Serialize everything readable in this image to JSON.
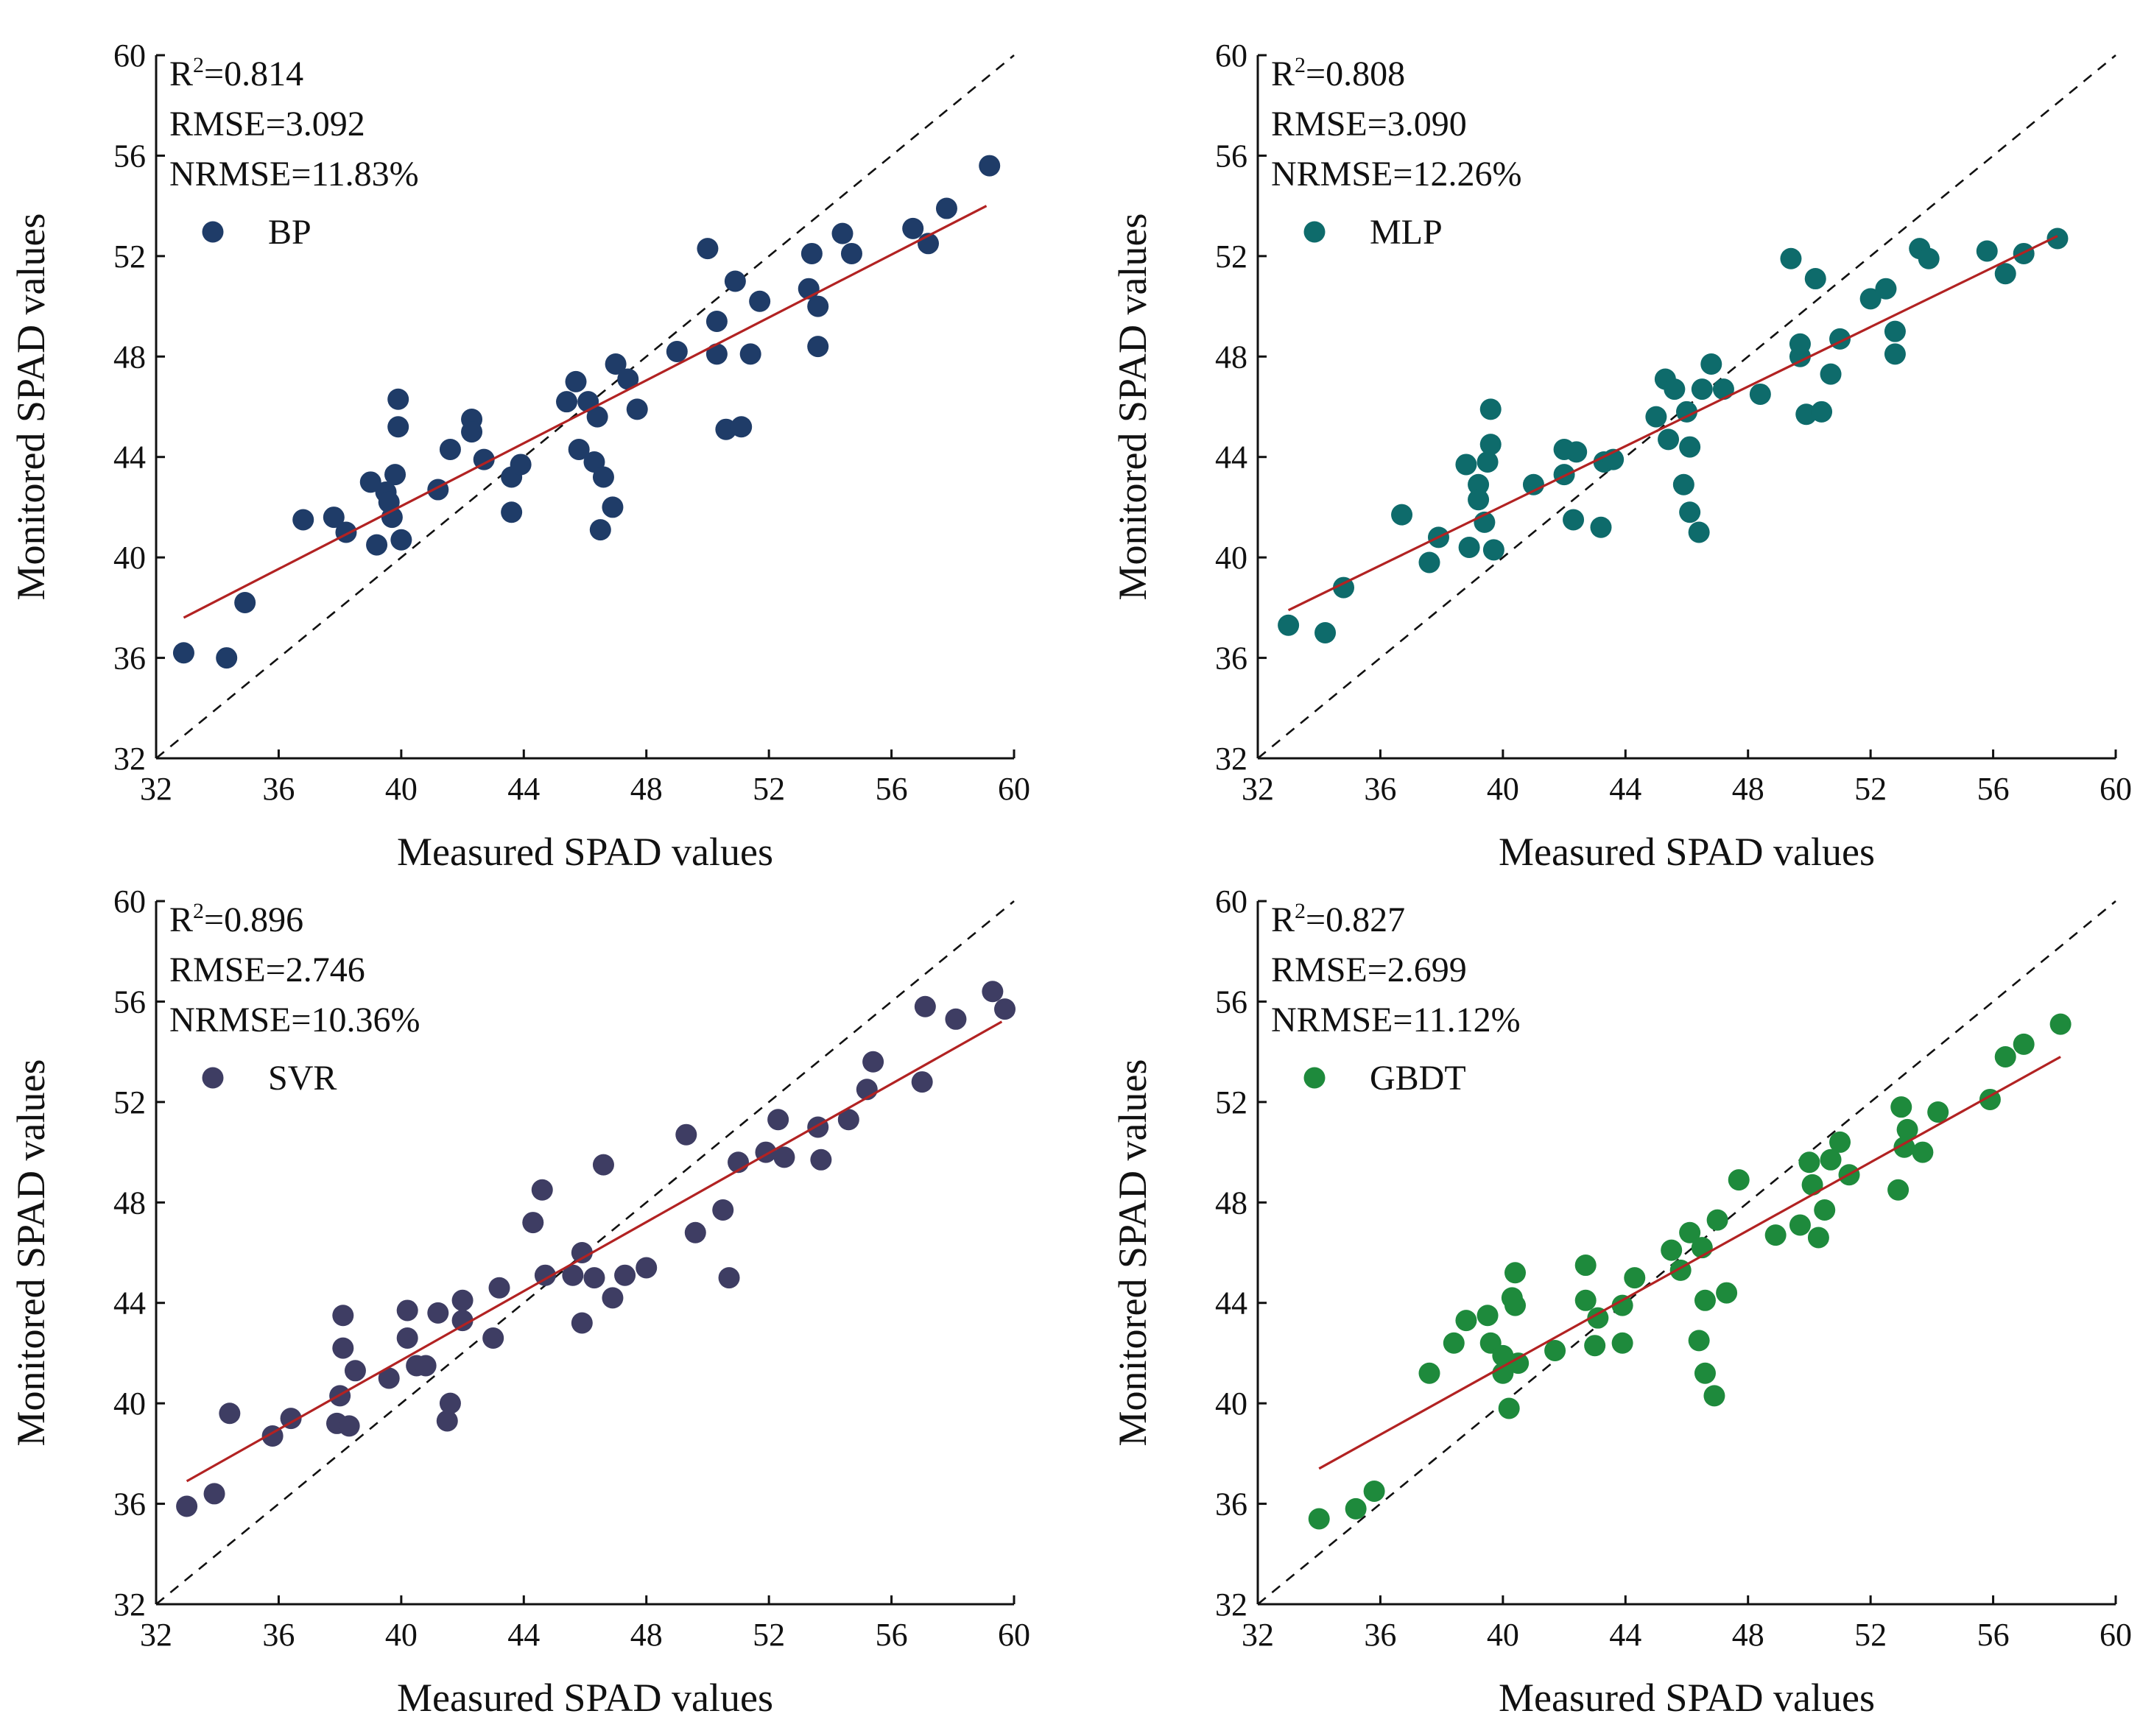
{
  "figure": {
    "xlabel": "Measured SPAD values",
    "ylabel": "Monitored SPAD values"
  },
  "chart_data": [
    {
      "type": "scatter",
      "model": "BP",
      "stats": {
        "r2_label": "R",
        "r2_sup": "2",
        "r2_value": "=0.814",
        "rmse": "RMSE=3.092",
        "nrmse": "NRMSE=11.83%"
      },
      "color": "#1f3c68",
      "xlim": [
        32,
        60
      ],
      "ylim": [
        32,
        60
      ],
      "xticks": [
        32,
        36,
        40,
        44,
        48,
        52,
        56,
        60
      ],
      "yticks": [
        32,
        36,
        40,
        44,
        48,
        52,
        56,
        60
      ],
      "fit": {
        "x": [
          32.9,
          59.1
        ],
        "y": [
          37.6,
          54.0
        ]
      },
      "points": [
        [
          32.9,
          36.2
        ],
        [
          34.3,
          36.0
        ],
        [
          34.9,
          38.2
        ],
        [
          36.8,
          41.5
        ],
        [
          37.8,
          41.6
        ],
        [
          38.2,
          41.0
        ],
        [
          39.0,
          43.0
        ],
        [
          39.2,
          40.5
        ],
        [
          39.5,
          42.6
        ],
        [
          39.6,
          42.2
        ],
        [
          39.7,
          41.6
        ],
        [
          39.8,
          43.3
        ],
        [
          39.9,
          46.3
        ],
        [
          39.9,
          45.2
        ],
        [
          40.0,
          40.7
        ],
        [
          41.2,
          42.7
        ],
        [
          41.6,
          44.3
        ],
        [
          42.3,
          45.5
        ],
        [
          42.3,
          45.0
        ],
        [
          42.7,
          43.9
        ],
        [
          43.6,
          43.2
        ],
        [
          43.6,
          41.8
        ],
        [
          43.9,
          43.7
        ],
        [
          45.4,
          46.2
        ],
        [
          45.7,
          47.0
        ],
        [
          45.8,
          44.3
        ],
        [
          46.1,
          46.2
        ],
        [
          46.3,
          43.8
        ],
        [
          46.4,
          45.6
        ],
        [
          46.5,
          41.1
        ],
        [
          46.6,
          43.2
        ],
        [
          46.9,
          42.0
        ],
        [
          47.0,
          47.7
        ],
        [
          47.4,
          47.1
        ],
        [
          47.7,
          45.9
        ],
        [
          49.0,
          48.2
        ],
        [
          50.0,
          52.3
        ],
        [
          50.3,
          49.4
        ],
        [
          50.3,
          48.1
        ],
        [
          50.6,
          45.1
        ],
        [
          50.9,
          51.0
        ],
        [
          51.1,
          45.2
        ],
        [
          51.4,
          48.1
        ],
        [
          51.7,
          50.2
        ],
        [
          53.3,
          50.7
        ],
        [
          53.4,
          52.1
        ],
        [
          53.6,
          50.0
        ],
        [
          53.6,
          48.4
        ],
        [
          54.4,
          52.9
        ],
        [
          54.7,
          52.1
        ],
        [
          56.7,
          53.1
        ],
        [
          57.2,
          52.5
        ],
        [
          57.8,
          53.9
        ],
        [
          59.2,
          55.6
        ]
      ]
    },
    {
      "type": "scatter",
      "model": "MLP",
      "stats": {
        "r2_label": "R",
        "r2_sup": "2",
        "r2_value": "=0.808",
        "rmse": "RMSE=3.090",
        "nrmse": "NRMSE=12.26%"
      },
      "color": "#0e6b6b",
      "xlim": [
        32,
        60
      ],
      "ylim": [
        32,
        60
      ],
      "xticks": [
        32,
        36,
        40,
        44,
        48,
        52,
        56,
        60
      ],
      "yticks": [
        32,
        36,
        40,
        44,
        48,
        52,
        56,
        60
      ],
      "fit": {
        "x": [
          33.0,
          58.1
        ],
        "y": [
          37.9,
          52.8
        ]
      },
      "points": [
        [
          33.0,
          37.3
        ],
        [
          34.2,
          37.0
        ],
        [
          34.8,
          38.8
        ],
        [
          36.7,
          41.7
        ],
        [
          37.6,
          39.8
        ],
        [
          37.9,
          40.8
        ],
        [
          38.8,
          43.7
        ],
        [
          38.9,
          40.4
        ],
        [
          39.2,
          42.9
        ],
        [
          39.2,
          42.3
        ],
        [
          39.4,
          41.4
        ],
        [
          39.5,
          43.8
        ],
        [
          39.6,
          45.9
        ],
        [
          39.6,
          44.5
        ],
        [
          39.7,
          40.3
        ],
        [
          41.0,
          42.9
        ],
        [
          42.0,
          44.3
        ],
        [
          42.0,
          43.3
        ],
        [
          42.4,
          44.2
        ],
        [
          42.3,
          41.5
        ],
        [
          43.2,
          41.2
        ],
        [
          43.3,
          43.8
        ],
        [
          43.6,
          43.9
        ],
        [
          45.0,
          45.6
        ],
        [
          45.3,
          47.1
        ],
        [
          45.4,
          44.7
        ],
        [
          45.6,
          46.7
        ],
        [
          45.9,
          42.9
        ],
        [
          46.0,
          45.8
        ],
        [
          46.1,
          44.4
        ],
        [
          46.1,
          41.8
        ],
        [
          46.4,
          41.0
        ],
        [
          46.5,
          46.7
        ],
        [
          46.8,
          47.7
        ],
        [
          47.2,
          46.7
        ],
        [
          48.4,
          46.5
        ],
        [
          49.4,
          51.9
        ],
        [
          49.7,
          48.0
        ],
        [
          49.7,
          48.5
        ],
        [
          49.9,
          45.7
        ],
        [
          50.2,
          51.1
        ],
        [
          50.4,
          45.8
        ],
        [
          50.7,
          47.3
        ],
        [
          51.0,
          48.7
        ],
        [
          52.0,
          50.3
        ],
        [
          52.5,
          50.7
        ],
        [
          52.8,
          49.0
        ],
        [
          52.8,
          48.1
        ],
        [
          53.6,
          52.3
        ],
        [
          53.9,
          51.9
        ],
        [
          55.8,
          52.2
        ],
        [
          56.4,
          51.3
        ],
        [
          57.0,
          52.1
        ],
        [
          58.1,
          52.7
        ]
      ]
    },
    {
      "type": "scatter",
      "model": "SVR",
      "stats": {
        "r2_label": "R",
        "r2_sup": "2",
        "r2_value": "=0.896",
        "rmse": "RMSE=2.746",
        "nrmse": "NRMSE=10.36%"
      },
      "color": "#3e3d63",
      "xlim": [
        32,
        60
      ],
      "ylim": [
        32,
        60
      ],
      "xticks": [
        32,
        36,
        40,
        44,
        48,
        52,
        56,
        60
      ],
      "yticks": [
        32,
        36,
        40,
        44,
        48,
        52,
        56,
        60
      ],
      "fit": {
        "x": [
          33.0,
          59.6
        ],
        "y": [
          36.9,
          55.2
        ]
      },
      "points": [
        [
          33.0,
          35.9
        ],
        [
          33.9,
          36.4
        ],
        [
          34.4,
          39.6
        ],
        [
          35.8,
          38.7
        ],
        [
          36.4,
          39.4
        ],
        [
          37.9,
          39.2
        ],
        [
          38.0,
          40.3
        ],
        [
          38.1,
          43.5
        ],
        [
          38.1,
          42.2
        ],
        [
          38.3,
          39.1
        ],
        [
          38.5,
          41.3
        ],
        [
          39.6,
          41.0
        ],
        [
          40.2,
          43.7
        ],
        [
          40.2,
          42.6
        ],
        [
          40.5,
          41.5
        ],
        [
          40.8,
          41.5
        ],
        [
          41.2,
          43.6
        ],
        [
          41.5,
          39.3
        ],
        [
          41.6,
          40.0
        ],
        [
          42.0,
          43.3
        ],
        [
          42.0,
          44.1
        ],
        [
          43.0,
          42.6
        ],
        [
          43.2,
          44.6
        ],
        [
          44.3,
          47.2
        ],
        [
          44.6,
          48.5
        ],
        [
          44.7,
          45.1
        ],
        [
          45.6,
          45.1
        ],
        [
          45.9,
          46.0
        ],
        [
          45.9,
          43.2
        ],
        [
          46.3,
          45.0
        ],
        [
          46.6,
          49.5
        ],
        [
          46.9,
          44.2
        ],
        [
          47.3,
          45.1
        ],
        [
          48.0,
          45.4
        ],
        [
          49.3,
          50.7
        ],
        [
          49.6,
          46.8
        ],
        [
          50.5,
          47.7
        ],
        [
          50.7,
          45.0
        ],
        [
          51.0,
          49.6
        ],
        [
          51.9,
          50.0
        ],
        [
          52.3,
          51.3
        ],
        [
          52.5,
          49.8
        ],
        [
          53.6,
          51.0
        ],
        [
          53.7,
          49.7
        ],
        [
          54.6,
          51.3
        ],
        [
          55.2,
          52.5
        ],
        [
          55.4,
          53.6
        ],
        [
          57.0,
          52.8
        ],
        [
          57.1,
          55.8
        ],
        [
          58.1,
          55.3
        ],
        [
          59.3,
          56.4
        ],
        [
          59.7,
          55.7
        ]
      ]
    },
    {
      "type": "scatter",
      "model": "GBDT",
      "stats": {
        "r2_label": "R",
        "r2_sup": "2",
        "r2_value": "=0.827",
        "rmse": "RMSE=2.699",
        "nrmse": "NRMSE=11.12%"
      },
      "color": "#1e8a3c",
      "xlim": [
        32,
        60
      ],
      "ylim": [
        32,
        60
      ],
      "xticks": [
        32,
        36,
        40,
        44,
        48,
        52,
        56,
        60
      ],
      "yticks": [
        32,
        36,
        40,
        44,
        48,
        52,
        56,
        60
      ],
      "fit": {
        "x": [
          34.0,
          58.2
        ],
        "y": [
          37.4,
          53.8
        ]
      },
      "points": [
        [
          34.0,
          35.4
        ],
        [
          35.2,
          35.8
        ],
        [
          35.8,
          36.5
        ],
        [
          37.6,
          41.2
        ],
        [
          38.4,
          42.4
        ],
        [
          38.8,
          43.3
        ],
        [
          39.5,
          43.5
        ],
        [
          39.6,
          42.4
        ],
        [
          40.0,
          41.9
        ],
        [
          40.0,
          41.2
        ],
        [
          40.2,
          39.8
        ],
        [
          40.3,
          44.2
        ],
        [
          40.4,
          43.9
        ],
        [
          40.4,
          45.2
        ],
        [
          40.5,
          41.6
        ],
        [
          41.7,
          42.1
        ],
        [
          42.7,
          44.1
        ],
        [
          42.7,
          45.5
        ],
        [
          43.0,
          42.3
        ],
        [
          43.1,
          43.4
        ],
        [
          43.9,
          42.4
        ],
        [
          43.9,
          43.9
        ],
        [
          44.3,
          45.0
        ],
        [
          45.5,
          46.1
        ],
        [
          45.8,
          45.3
        ],
        [
          46.1,
          46.8
        ],
        [
          46.4,
          42.5
        ],
        [
          46.5,
          46.2
        ],
        [
          46.6,
          44.1
        ],
        [
          46.6,
          41.2
        ],
        [
          46.9,
          40.3
        ],
        [
          47.0,
          47.3
        ],
        [
          47.3,
          44.4
        ],
        [
          47.7,
          48.9
        ],
        [
          48.9,
          46.7
        ],
        [
          49.7,
          47.1
        ],
        [
          50.0,
          49.6
        ],
        [
          50.1,
          48.7
        ],
        [
          50.3,
          46.6
        ],
        [
          50.5,
          47.7
        ],
        [
          50.7,
          49.7
        ],
        [
          51.0,
          50.4
        ],
        [
          51.3,
          49.1
        ],
        [
          52.9,
          48.5
        ],
        [
          53.0,
          51.8
        ],
        [
          53.1,
          50.2
        ],
        [
          53.2,
          50.9
        ],
        [
          53.7,
          50.0
        ],
        [
          54.2,
          51.6
        ],
        [
          55.9,
          52.1
        ],
        [
          56.4,
          53.8
        ],
        [
          57.0,
          54.3
        ],
        [
          58.2,
          55.1
        ]
      ]
    }
  ]
}
